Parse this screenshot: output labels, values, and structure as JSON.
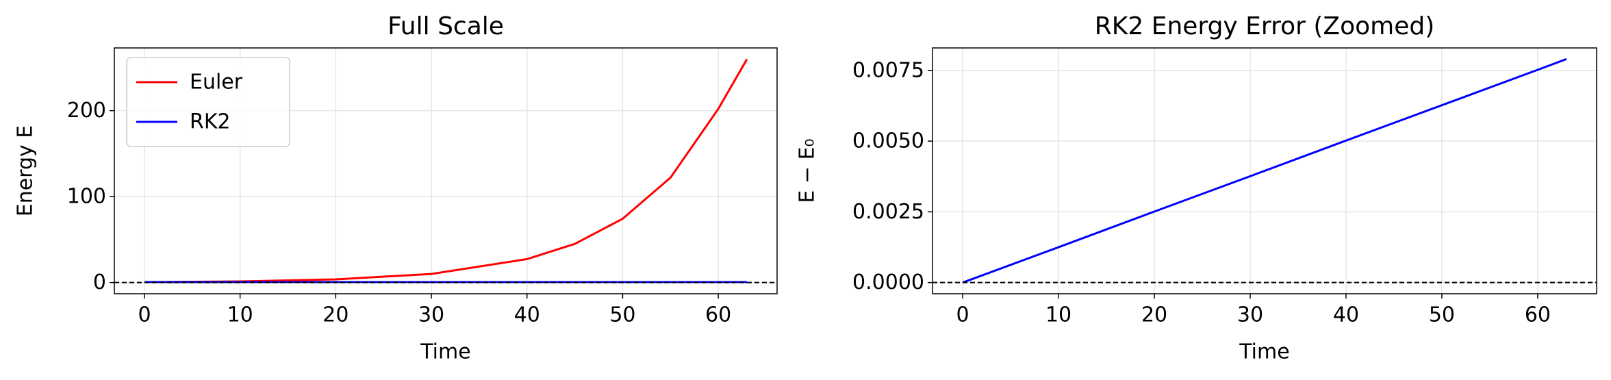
{
  "chart_data": [
    {
      "type": "line",
      "title": "Full Scale",
      "xlabel": "Time",
      "ylabel": "Energy E",
      "x": [
        0,
        10,
        20,
        30,
        40,
        45,
        50,
        55,
        60,
        63
      ],
      "series": [
        {
          "name": "Euler",
          "color": "#ff0000",
          "values": [
            0.5,
            1.36,
            3.69,
            10.0,
            27.3,
            45.0,
            74.2,
            122,
            202,
            260
          ]
        },
        {
          "name": "RK2",
          "color": "#0000ff",
          "values": [
            0.5,
            0.5,
            0.5,
            0.5,
            0.5,
            0.5,
            0.5,
            0.5,
            0.5,
            0.5
          ]
        }
      ],
      "xlim": [
        -3.15,
        66.15
      ],
      "ylim": [
        -13,
        273
      ],
      "xticks": [
        0,
        10,
        20,
        30,
        40,
        50,
        60
      ],
      "yticks": [
        0,
        100,
        200
      ],
      "hline": 0,
      "grid": true,
      "legend": "upper left"
    },
    {
      "type": "line",
      "title": "RK2 Energy Error (Zoomed)",
      "xlabel": "Time",
      "ylabel": "E − E₀",
      "x": [
        0,
        10,
        20,
        30,
        40,
        50,
        60,
        63
      ],
      "values": [
        0,
        0.00125,
        0.00251,
        0.00376,
        0.00502,
        0.00627,
        0.00752,
        0.0079
      ],
      "color": "#0000ff",
      "xlim": [
        -3.15,
        66.15
      ],
      "ylim": [
        -0.000395,
        0.008295
      ],
      "xticks": [
        0,
        10,
        20,
        30,
        40,
        50,
        60
      ],
      "yticks": [
        {
          "value": 0,
          "label": "0.0000"
        },
        {
          "value": 0.0025,
          "label": "0.0025"
        },
        {
          "value": 0.005,
          "label": "0.0050"
        },
        {
          "value": 0.0075,
          "label": "0.0075"
        }
      ],
      "hline": 0,
      "grid": true
    }
  ]
}
